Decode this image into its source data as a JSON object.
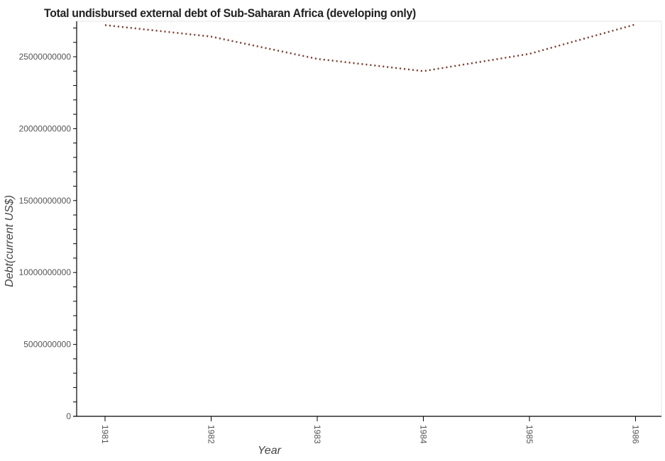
{
  "chart_data": {
    "type": "line",
    "title": "Total undisbursed external debt of Sub-Saharan Africa (developing only)",
    "xlabel": "Year",
    "ylabel": "Debt(current US$)",
    "categories": [
      "1981",
      "1982",
      "1983",
      "1984",
      "1985",
      "1986"
    ],
    "series": [
      {
        "name": "Undisbursed external debt",
        "values": [
          27200000000,
          26400000000,
          24850000000,
          24000000000,
          25200000000,
          27250000000
        ],
        "color": "#7a3b2e",
        "style": "dotted"
      }
    ],
    "yticks": [
      0,
      5000000000,
      10000000000,
      15000000000,
      20000000000,
      25000000000
    ],
    "ytick_labels": [
      "0",
      "5000000000",
      "10000000000",
      "15000000000",
      "20000000000",
      "25000000000"
    ],
    "ylim": [
      0,
      27500000000
    ],
    "grid": false,
    "legend": "none"
  }
}
